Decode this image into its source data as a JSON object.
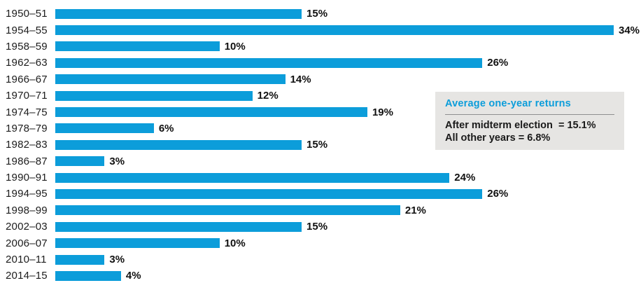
{
  "chart_data": {
    "type": "bar",
    "orientation": "horizontal",
    "title": "",
    "xlabel": "",
    "ylabel": "",
    "xlim": [
      0,
      34
    ],
    "grid": false,
    "bar_color": "#0c9dda",
    "categories": [
      "1950–51",
      "1954–55",
      "1958–59",
      "1962–63",
      "1966–67",
      "1970–71",
      "1974–75",
      "1978–79",
      "1982–83",
      "1986–87",
      "1990–91",
      "1994–95",
      "1998–99",
      "2002–03",
      "2006–07",
      "2010–11",
      "2014–15"
    ],
    "values": [
      15,
      34,
      10,
      26,
      14,
      12,
      19,
      6,
      15,
      3,
      24,
      26,
      21,
      15,
      10,
      3,
      4
    ],
    "value_labels": [
      "15%",
      "34%",
      "10%",
      "26%",
      "14%",
      "12%",
      "19%",
      "6%",
      "15%",
      "3%",
      "24%",
      "26%",
      "21%",
      "15%",
      "10%",
      "3%",
      "4%"
    ],
    "legend_position": "right-middle"
  },
  "legend": {
    "title": "Average one-year returns",
    "title_color": "#0c9dda",
    "background": "#e6e5e3",
    "line1": "After midterm election  = 15.1%",
    "line2": "All other years = 6.8%"
  }
}
